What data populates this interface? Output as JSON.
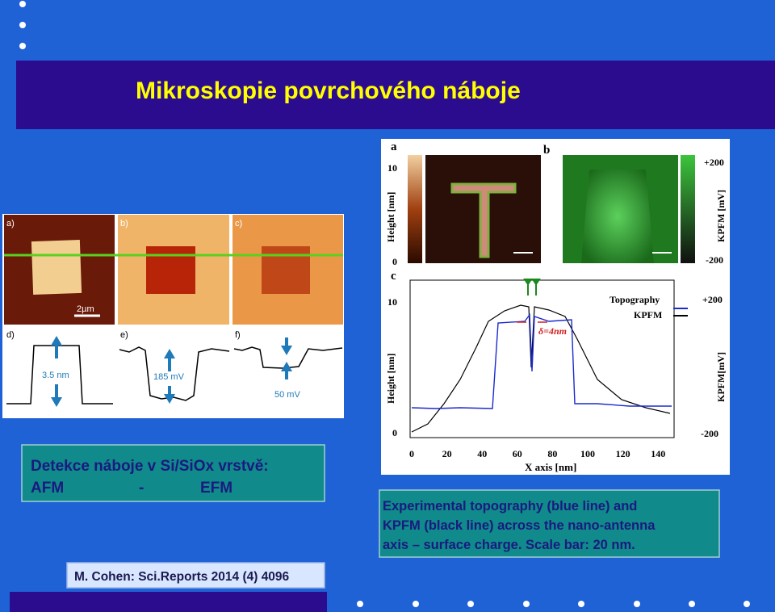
{
  "title": "Mikroskopie povrchového náboje",
  "box_left": {
    "line1": "Detekce náboje v Si/SiOx vrstvě:",
    "line2": [
      "AFM",
      "-",
      "EFM"
    ]
  },
  "caption": [
    "Experimental topography (blue line) and",
    "KPFM (black line) across the nano-antenna",
    "axis – surface charge.  Scale bar: 20 nm."
  ],
  "citation": "M. Cohen: Sci.Reports 2014 (4) 4096",
  "figure_left": {
    "panel_labels": [
      "a)",
      "b)",
      "c)",
      "d)",
      "e)",
      "f)"
    ],
    "scale_bar": "2µm",
    "annotations": [
      "3.5 nm",
      "185 mV",
      "50 mV"
    ]
  },
  "figure_right": {
    "panel_labels": [
      "a",
      "b",
      "c"
    ],
    "height_axis": {
      "label": "Height [nm]",
      "top": "10",
      "bottom": "0"
    },
    "kpfm_axis_top": {
      "label": "KPFM [mV]",
      "top": "+200",
      "bottom": "-200"
    },
    "plot": {
      "y_label": "Height [nm]",
      "y_top": "10",
      "y_bottom": "0",
      "y2_label": "KPFM[mV]",
      "y2_top": "+200",
      "y2_bottom": "-200",
      "x_label": "X axis [nm]",
      "x_ticks": [
        "0",
        "20",
        "40",
        "60",
        "80",
        "100",
        "120",
        "140"
      ],
      "legend": [
        "Topography",
        "KPFM"
      ],
      "annotation": "δ=4nm"
    }
  }
}
